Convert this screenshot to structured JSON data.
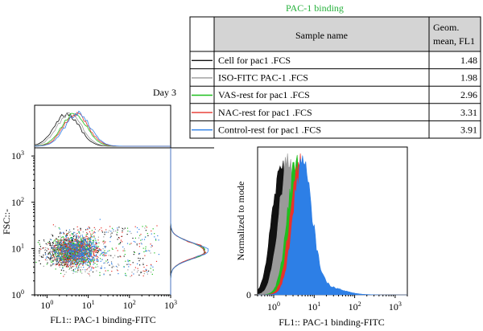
{
  "colors": {
    "black": "#111111",
    "gray": "#9a9a9a",
    "green": "#1fbf1f",
    "red": "#e8332b",
    "blue": "#2d7fe6",
    "title_green": "#25b13b",
    "header_bg": "#d4d4d4"
  },
  "legend": {
    "title": "PAC-1 binding",
    "col_sample": "Sample name",
    "col_mean_line1": "Geom.",
    "col_mean_line2": "mean, FL1",
    "rows": [
      {
        "name": "Cell for pac1 .FCS",
        "value": "1.48",
        "color": "#111111"
      },
      {
        "name": "ISO-FITC PAC-1 .FCS",
        "value": "1.98",
        "color": "#9a9a9a"
      },
      {
        "name": "VAS-rest for pac1 .FCS",
        "value": "2.96",
        "color": "#1fbf1f"
      },
      {
        "name": "NAC-rest for pac1 .FCS",
        "value": "3.31",
        "color": "#e8332b"
      },
      {
        "name": "Control-rest for pac1 .FCS",
        "value": "3.91",
        "color": "#2d7fe6"
      }
    ]
  },
  "chart_data": [
    {
      "type": "scatter",
      "title": "Day 3",
      "xlabel": "FL1:: PAC-1 binding-FITC",
      "ylabel": "FSC::-",
      "xscale": "log",
      "yscale": "log",
      "xlim": [
        0.5,
        1000
      ],
      "ylim": [
        1,
        1500
      ],
      "x_ticks": [
        {
          "b": "10",
          "e": "0"
        },
        {
          "b": "10",
          "e": "1"
        },
        {
          "b": "10",
          "e": "2"
        },
        {
          "b": "10",
          "e": "3"
        }
      ],
      "y_ticks": [
        {
          "b": "10",
          "e": "0"
        },
        {
          "b": "10",
          "e": "1"
        },
        {
          "b": "10",
          "e": "2"
        },
        {
          "b": "10",
          "e": "3"
        }
      ],
      "series": [
        {
          "name": "Cell for pac1 .FCS",
          "color": "#111111",
          "center_x": 3,
          "center_y": 9
        },
        {
          "name": "ISO-FITC PAC-1 .FCS",
          "color": "#9a9a9a",
          "center_x": 3.5,
          "center_y": 9
        },
        {
          "name": "VAS-rest for pac1 .FCS",
          "color": "#1fbf1f",
          "center_x": 4.5,
          "center_y": 9
        },
        {
          "name": "NAC-rest for pac1 .FCS",
          "color": "#e8332b",
          "center_x": 5,
          "center_y": 9
        },
        {
          "name": "Control-rest for pac1 .FCS",
          "color": "#2d7fe6",
          "center_x": 5.5,
          "center_y": 9
        }
      ]
    },
    {
      "type": "area",
      "xlabel": "FL1:: PAC-1 binding-FITC",
      "ylabel": "Normalized to mode",
      "xscale": "log",
      "xlim": [
        0.4,
        2000
      ],
      "ylim": [
        0,
        1
      ],
      "y_tick_zero": "0",
      "x_ticks": [
        {
          "b": "10",
          "e": "0"
        },
        {
          "b": "10",
          "e": "1"
        },
        {
          "b": "10",
          "e": "2"
        },
        {
          "b": "10",
          "e": "3"
        }
      ],
      "series": [
        {
          "name": "Cell for pac1 .FCS",
          "color": "#111111",
          "peak_x": 1.5
        },
        {
          "name": "ISO-FITC PAC-1 .FCS",
          "color": "#9a9a9a",
          "peak_x": 2.2
        },
        {
          "name": "VAS-rest for pac1 .FCS",
          "color": "#1fbf1f",
          "peak_x": 3.6
        },
        {
          "name": "NAC-rest for pac1 .FCS",
          "color": "#e8332b",
          "peak_x": 4.2
        },
        {
          "name": "Control-rest for pac1 .FCS",
          "color": "#2d7fe6",
          "peak_x": 5.0
        }
      ]
    }
  ]
}
